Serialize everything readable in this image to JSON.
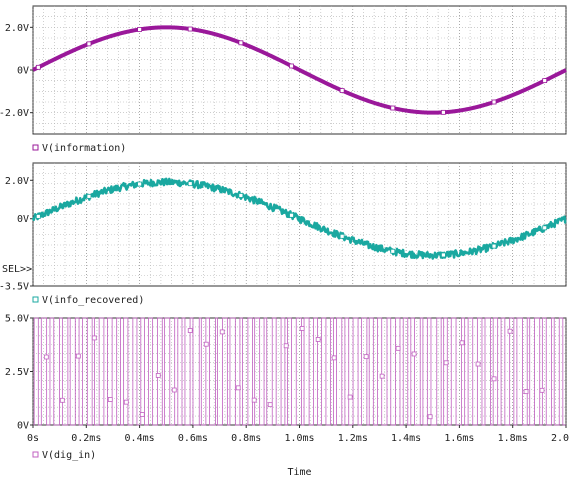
{
  "chart_data": [
    {
      "type": "line",
      "series": [
        {
          "name": "V(information)",
          "color": "#9a189a",
          "amplitude": 2.0,
          "period_ms": 2.0,
          "noise": 0.0
        }
      ],
      "ylim": [
        -3.0,
        3.0
      ],
      "yticks": [
        {
          "value": 2.0,
          "label": "2.0V"
        },
        {
          "value": 0,
          "label": "0V"
        },
        {
          "value": -2.0,
          "label": "-2.0V"
        }
      ],
      "legend": "bottom-left"
    },
    {
      "type": "line",
      "series": [
        {
          "name": "V(info_recovered)",
          "color": "#1aa8a0",
          "amplitude": 1.9,
          "period_ms": 2.0,
          "noise": 0.18
        }
      ],
      "ylim": [
        -3.5,
        2.9
      ],
      "yticks": [
        {
          "value": 2.0,
          "label": "2.0V"
        },
        {
          "value": 0,
          "label": "0V"
        },
        {
          "value": -3.5,
          "label": "-3.5V"
        }
      ],
      "cursor_label": "SEL>>",
      "legend": "bottom-left"
    },
    {
      "type": "line",
      "series": [
        {
          "name": "V(dig_in)",
          "color": "#c060c0",
          "low": 0,
          "high": 5.0,
          "transitions": 130
        }
      ],
      "ylim": [
        0,
        5.0
      ],
      "yticks": [
        {
          "value": 5.0,
          "label": "5.0V"
        },
        {
          "value": 2.5,
          "label": "2.5V"
        },
        {
          "value": 0,
          "label": "0V"
        }
      ],
      "legend": "bottom-left"
    }
  ],
  "x_axis": {
    "xlim": [
      0,
      2.0
    ],
    "xlabel": "Time",
    "xticks": [
      {
        "value": 0,
        "label": "0s"
      },
      {
        "value": 0.2,
        "label": "0.2ms"
      },
      {
        "value": 0.4,
        "label": "0.4ms"
      },
      {
        "value": 0.6,
        "label": "0.6ms"
      },
      {
        "value": 0.8,
        "label": "0.8ms"
      },
      {
        "value": 1.0,
        "label": "1.0ms"
      },
      {
        "value": 1.2,
        "label": "1.2ms"
      },
      {
        "value": 1.4,
        "label": "1.4ms"
      },
      {
        "value": 1.6,
        "label": "1.6ms"
      },
      {
        "value": 1.8,
        "label": "1.8ms"
      },
      {
        "value": 2.0,
        "label": "2.0ms"
      }
    ]
  },
  "grid": true
}
